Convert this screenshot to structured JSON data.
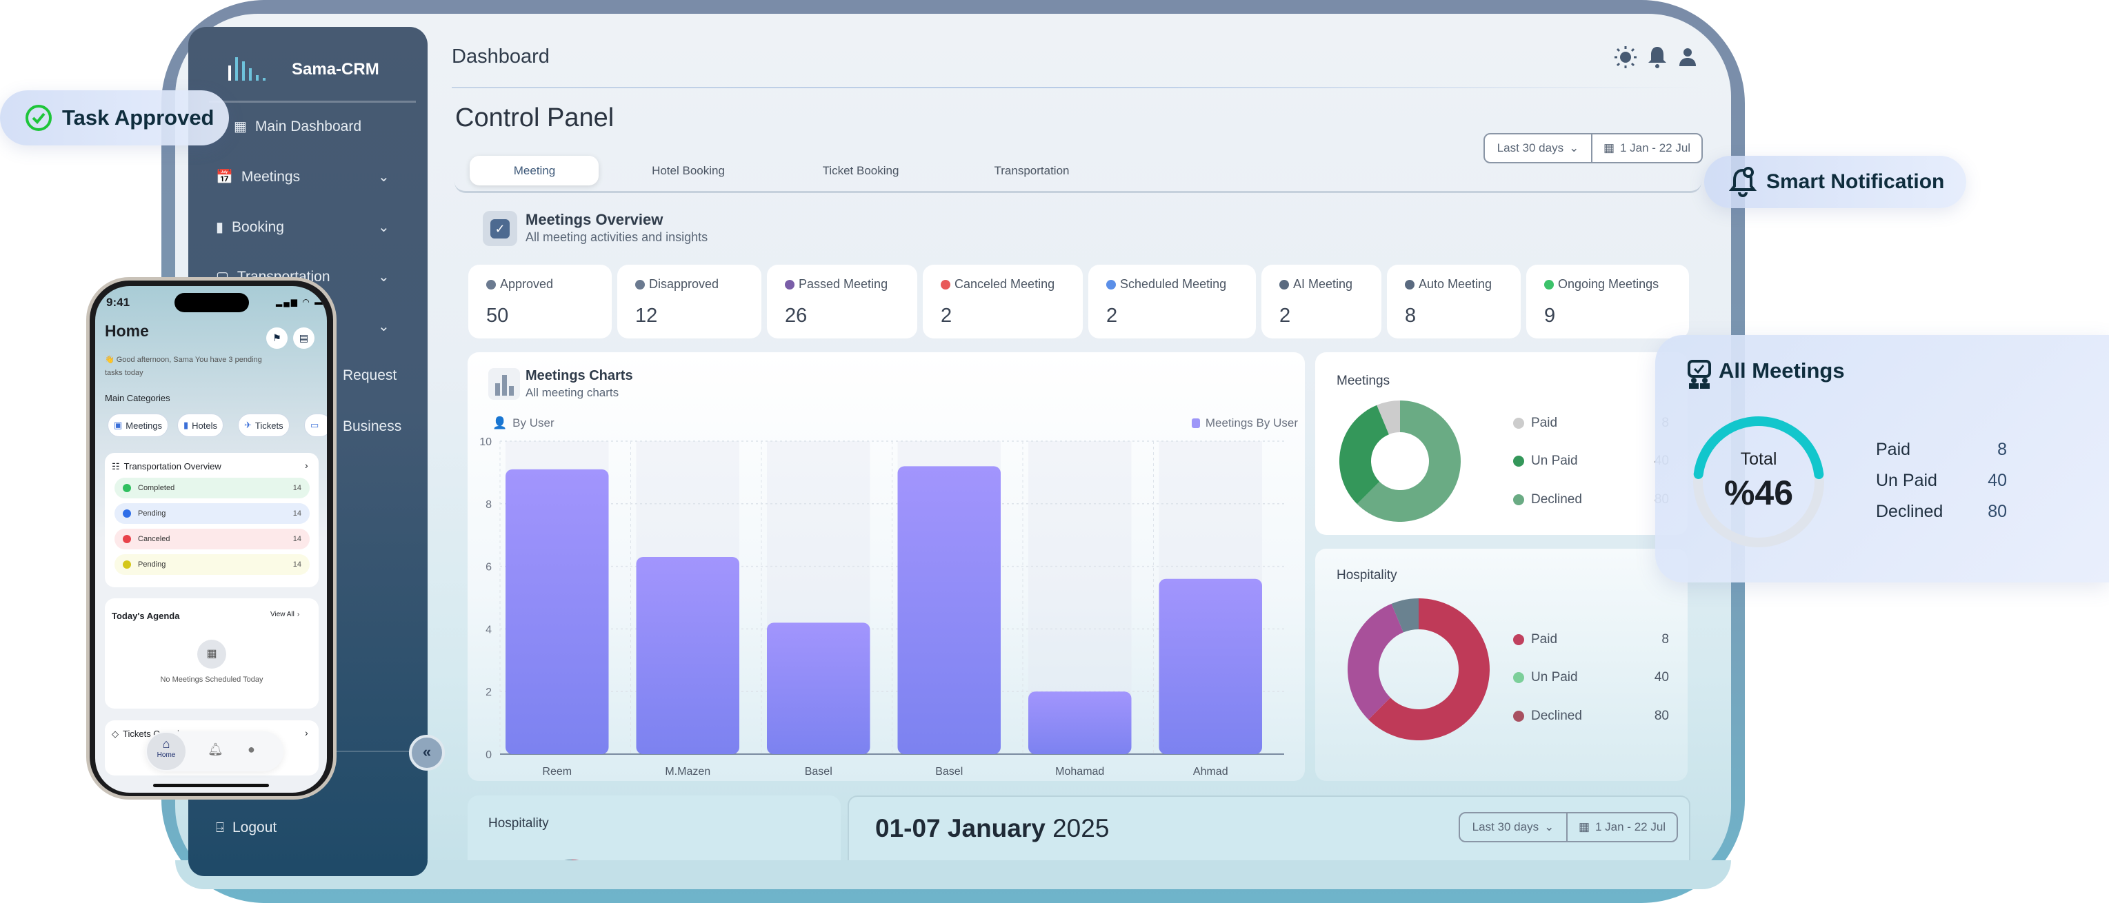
{
  "app": {
    "brand": "Sama-CRM",
    "header_title": "Dashboard",
    "page_title": "Control Panel"
  },
  "header_icons": [
    "sun-icon",
    "bell-icon",
    "user-icon"
  ],
  "sidebar": {
    "items": [
      {
        "label": "Main Dashboard",
        "icon": "grid-icon",
        "has_chevron": false
      },
      {
        "label": "Meetings",
        "icon": "calendar-check-icon",
        "has_chevron": true
      },
      {
        "label": "Booking",
        "icon": "bookmark-icon",
        "has_chevron": true
      },
      {
        "label": "Transportation",
        "icon": "car-icon",
        "has_chevron": true
      },
      {
        "label": "",
        "icon": "",
        "has_chevron": true
      },
      {
        "label": "Request",
        "icon": "",
        "has_chevron": false
      },
      {
        "label": "Business",
        "icon": "",
        "has_chevron": false
      }
    ],
    "logout": "Logout",
    "collapse_icon": "chevrons-left-icon"
  },
  "date_filter": {
    "range": "Last 30 days",
    "dates": "1 Jan - 22 Jul"
  },
  "tabs": [
    {
      "label": "Meeting",
      "active": true
    },
    {
      "label": "Hotel Booking",
      "active": false
    },
    {
      "label": "Ticket Booking",
      "active": false
    },
    {
      "label": "Transportation",
      "active": false
    }
  ],
  "overview": {
    "title": "Meetings Overview",
    "subtitle": "All meeting activities and insights"
  },
  "stats": [
    {
      "label": "Approved",
      "value": "50",
      "icon": "thumbs-up-icon",
      "color": "#6b7a90"
    },
    {
      "label": "Disapproved",
      "value": "12",
      "icon": "thumbs-down-icon",
      "color": "#6b7a90"
    },
    {
      "label": "Passed Meeting",
      "value": "26",
      "icon": "clock-icon",
      "color": "#7a5ea8"
    },
    {
      "label": "Canceled Meeting",
      "value": "2",
      "icon": "x-circle-icon",
      "color": "#e85a5a"
    },
    {
      "label": "Scheduled Meeting",
      "value": "2",
      "icon": "calendar-icon",
      "color": "#5b8fe8"
    },
    {
      "label": "AI Meeting",
      "value": "2",
      "icon": "ai-icon",
      "color": "#5a6a80"
    },
    {
      "label": "Auto Meeting",
      "value": "8",
      "icon": "wrench-icon",
      "color": "#5a6a80"
    },
    {
      "label": "Ongoing Meetings",
      "value": "9",
      "icon": "live-dot-icon",
      "color": "#3cc26a"
    }
  ],
  "meetings_chart_card": {
    "title": "Meetings Charts",
    "subtitle": "All meeting charts",
    "filter_label": "By User"
  },
  "chart_data": {
    "type": "bar",
    "categories": [
      "Reem",
      "M.Mazen",
      "Basel",
      "Basel",
      "Mohamad",
      "Ahmad"
    ],
    "series": [
      {
        "name": "Meetings By User",
        "values": [
          9.1,
          6.3,
          4.2,
          9.2,
          2.0,
          5.6
        ],
        "color": "#8f8cf6"
      }
    ],
    "yticks": [
      "0",
      "2",
      "4",
      "6",
      "8",
      "10"
    ],
    "ylim": [
      0,
      10
    ],
    "grid": true,
    "legend": "top-right"
  },
  "meetings_donut": {
    "title": "Meetings",
    "legend": [
      {
        "label": "Paid",
        "value": "8",
        "color": "#cccccc"
      },
      {
        "label": "Un Paid",
        "value": "40",
        "color": "#34975a"
      },
      {
        "label": "Declined",
        "value": "80",
        "color": "#6aab84"
      }
    ]
  },
  "hospitality_donut": {
    "title": "Hospitality",
    "legend": [
      {
        "label": "Paid",
        "value": "8",
        "color": "#c0405e"
      },
      {
        "label": "Un Paid",
        "value": "40",
        "color": "#7ccf9a"
      },
      {
        "label": "Declined",
        "value": "80",
        "color": "#a85060"
      }
    ]
  },
  "bottom": {
    "hospitality_title": "Hospitality",
    "week_title_bold": "01-07 January",
    "week_title_year": "2025",
    "range": "Last 30 days",
    "dates": "1 Jan - 22 Jul"
  },
  "overlays": {
    "task_approved": "Task Approved",
    "smart_notification": "Smart Notification",
    "all_meetings": {
      "title": "All Meetings",
      "total_label": "Total",
      "total_value": "%46",
      "percent": 46,
      "rows": [
        {
          "label": "Paid",
          "value": "8"
        },
        {
          "label": "Un Paid",
          "value": "40"
        },
        {
          "label": "Declined",
          "value": "80"
        }
      ],
      "accent": "#12c6cc"
    }
  },
  "phone": {
    "time": "9:41",
    "title": "Home",
    "greeting_line1": "👋 Good afternoon, Sama You have 3 pending",
    "greeting_line2": "tasks today",
    "categories_title": "Main Categories",
    "categories": [
      "Meetings",
      "Hotels",
      "Tickets"
    ],
    "transport_title": "Transportation Overview",
    "transport_rows": [
      {
        "label": "Completed",
        "value": "14",
        "bg": "#e6f7ec",
        "color": "#2fbf5f"
      },
      {
        "label": "Pending",
        "value": "14",
        "bg": "#e6eefc",
        "color": "#2f6ee8"
      },
      {
        "label": "Canceled",
        "value": "14",
        "bg": "#fde9ea",
        "color": "#e8424a"
      },
      {
        "label": "Pending",
        "value": "14",
        "bg": "#fbfbe6",
        "color": "#d4c71a"
      }
    ],
    "agenda_title": "Today's Agenda",
    "view_all": "View All",
    "empty_agenda": "No Meetings Scheduled Today",
    "tickets_title": "Tickets Overview",
    "nav": [
      {
        "label": "Home",
        "icon": "home-icon"
      },
      {
        "label": "",
        "icon": "bell-icon"
      },
      {
        "label": "",
        "icon": "user-icon"
      }
    ]
  }
}
